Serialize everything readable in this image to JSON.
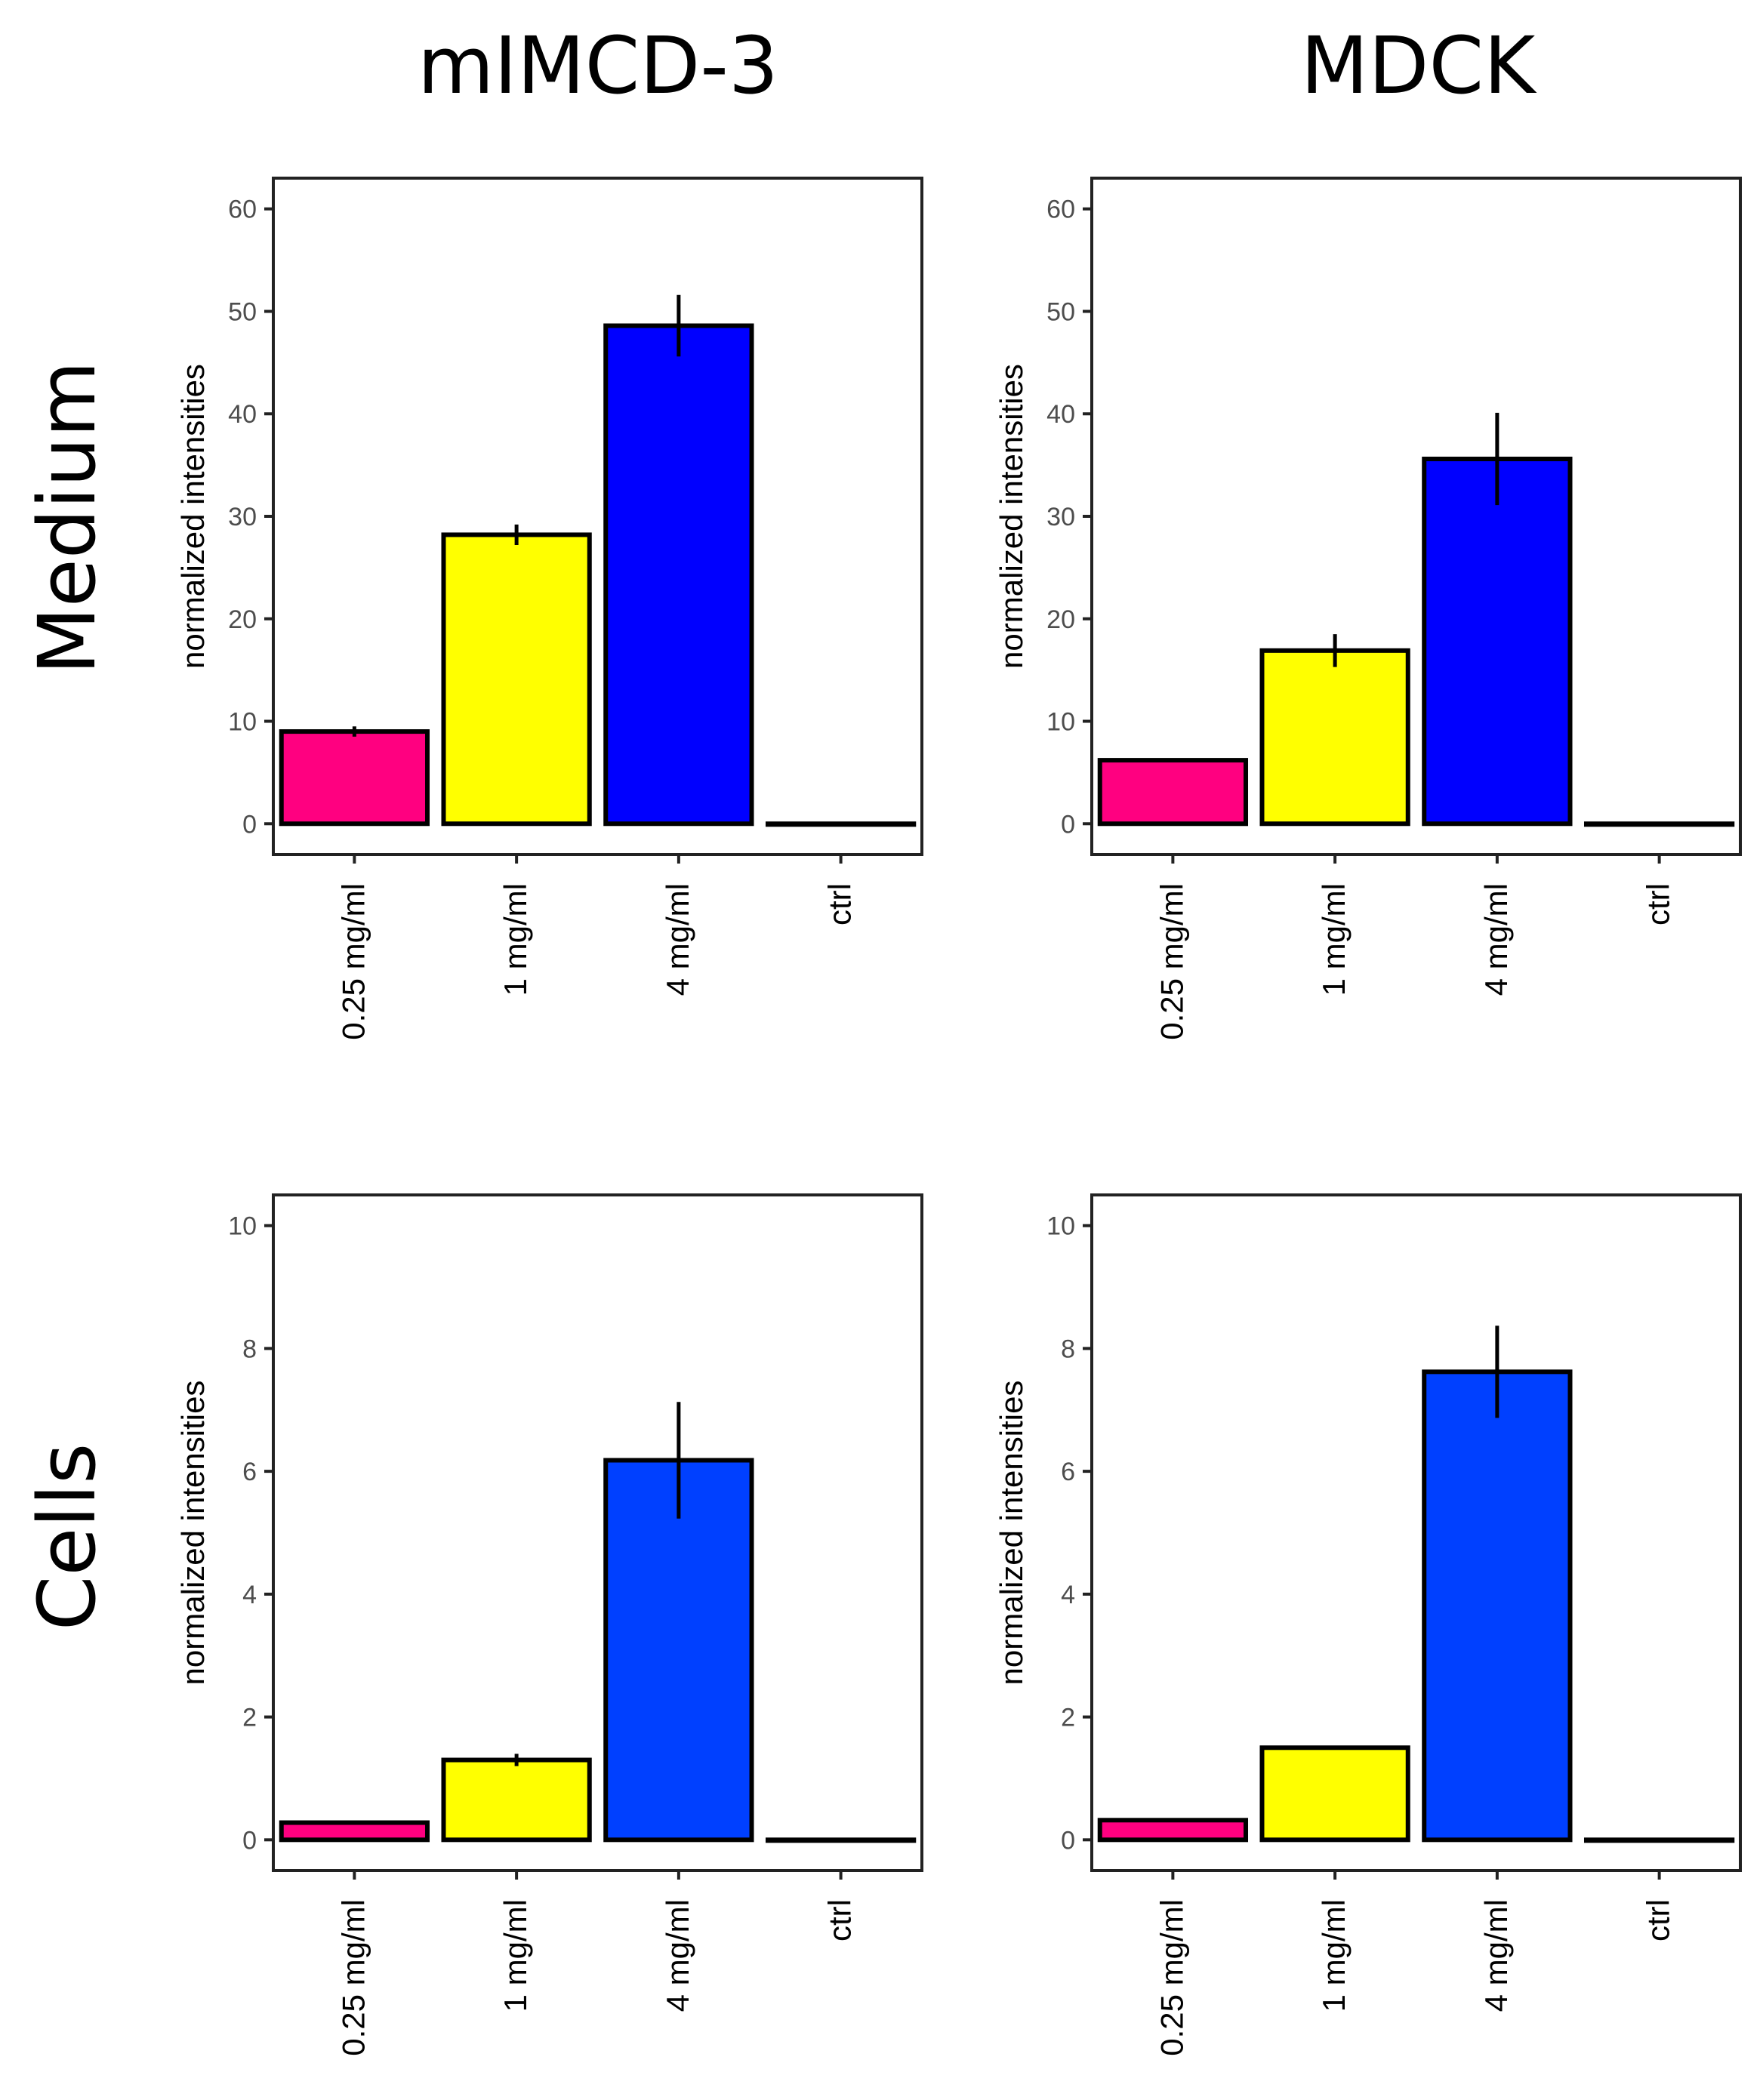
{
  "figure": {
    "column_titles": [
      "mIMCD-3",
      "MDCK"
    ],
    "row_titles": [
      "Medium",
      "Cells"
    ],
    "colors": {
      "axis": "#222222",
      "tick_text": "#4d4d4d",
      "bar_outline": "#000000"
    }
  },
  "chart_data": [
    {
      "type": "bar",
      "row": "Medium",
      "column": "mIMCD-3",
      "ylabel": "normalized intensities",
      "ylim": [
        -3,
        63
      ],
      "yticks": [
        0,
        10,
        20,
        30,
        40,
        50,
        60
      ],
      "categories": [
        "0.25 mg/ml",
        "1 mg/ml",
        "4 mg/ml",
        "ctrl"
      ],
      "values": [
        9.0,
        28.2,
        48.6,
        0
      ],
      "errors": [
        0.5,
        1.0,
        3.0,
        0
      ],
      "colors": [
        "#ff0080",
        "#ffff00",
        "#0000ff",
        "#ffffff"
      ],
      "grid": false
    },
    {
      "type": "bar",
      "row": "Medium",
      "column": "MDCK",
      "ylabel": "normalized intensities",
      "ylim": [
        -3,
        63
      ],
      "yticks": [
        0,
        10,
        20,
        30,
        40,
        50,
        60
      ],
      "categories": [
        "0.25 mg/ml",
        "1 mg/ml",
        "4 mg/ml",
        "ctrl"
      ],
      "values": [
        6.2,
        16.9,
        35.6,
        0
      ],
      "errors": [
        0,
        1.6,
        4.5,
        0
      ],
      "colors": [
        "#ff0080",
        "#ffff00",
        "#0000ff",
        "#ffffff"
      ],
      "grid": false
    },
    {
      "type": "bar",
      "row": "Cells",
      "column": "mIMCD-3",
      "ylabel": "normalized intensities",
      "ylim": [
        -0.5,
        10.5
      ],
      "yticks": [
        0,
        2,
        4,
        6,
        8,
        10
      ],
      "categories": [
        "0.25 mg/ml",
        "1 mg/ml",
        "4 mg/ml",
        "ctrl"
      ],
      "values": [
        0.28,
        1.3,
        6.18,
        0
      ],
      "errors": [
        0,
        0.1,
        0.95,
        0
      ],
      "colors": [
        "#ff0080",
        "#ffff00",
        "#0040ff",
        "#ffffff"
      ],
      "grid": false
    },
    {
      "type": "bar",
      "row": "Cells",
      "column": "MDCK",
      "ylabel": "normalized intensities",
      "ylim": [
        -0.5,
        10.5
      ],
      "yticks": [
        0,
        2,
        4,
        6,
        8,
        10
      ],
      "categories": [
        "0.25 mg/ml",
        "1 mg/ml",
        "4 mg/ml",
        "ctrl"
      ],
      "values": [
        0.32,
        1.5,
        7.62,
        0
      ],
      "errors": [
        0,
        0,
        0.75,
        0
      ],
      "colors": [
        "#ff0080",
        "#ffff00",
        "#0040ff",
        "#ffffff"
      ],
      "grid": false
    }
  ]
}
